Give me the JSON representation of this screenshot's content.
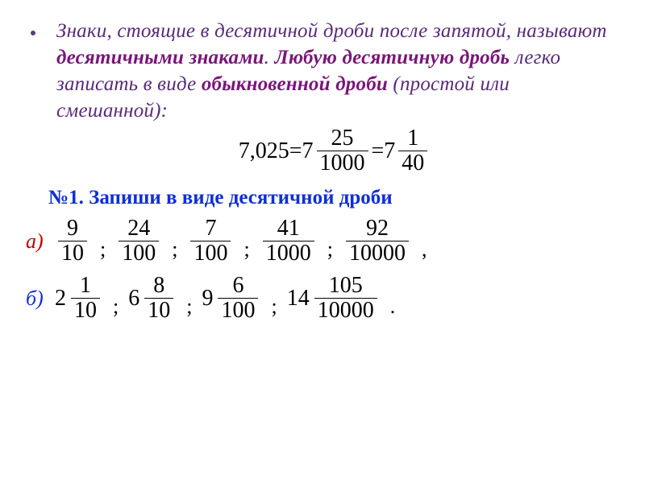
{
  "colors": {
    "text_main": "#592a7a",
    "bold_accent": "#7a157a",
    "task_blue": "#0f2fd6",
    "label_a": "#c00000",
    "label_b": "#0f2fd6",
    "black": "#000000",
    "bullet": "#5a3d7a",
    "frac_bar": "#000000"
  },
  "fonts": {
    "para_size": 25,
    "frac_size": 28,
    "title_size": 25,
    "label_size": 26
  },
  "paragraph": {
    "t1": "Знаки, стоящие в десятичной дроби после запятой, называют ",
    "b1": "десятичными знаками",
    "t2": ". ",
    "b2": "Любую десятичную дробь",
    "t3": " легко записать в виде ",
    "b3": "обыкновенной дроби ",
    "t4": "(простой или смешанной):"
  },
  "example": {
    "lhs": "7,025",
    "eq": " = ",
    "whole": "7",
    "f1": {
      "n": "25",
      "d": "1000"
    },
    "f2": {
      "n": "1",
      "d": "40"
    }
  },
  "task_title": "№1. Запиши в виде десятичной дроби",
  "row_a": {
    "label": "а)",
    "items": [
      {
        "n": "9",
        "d": "10"
      },
      {
        "n": "24",
        "d": "100"
      },
      {
        "n": "7",
        "d": "100"
      },
      {
        "n": "41",
        "d": "1000"
      },
      {
        "n": "92",
        "d": "10000"
      }
    ],
    "seps": [
      ";",
      ";",
      ";",
      ";",
      ","
    ]
  },
  "row_b": {
    "label": "б)",
    "items": [
      {
        "w": "2",
        "n": "1",
        "d": "10"
      },
      {
        "w": "6",
        "n": "8",
        "d": "10"
      },
      {
        "w": "9",
        "n": "6",
        "d": "100"
      },
      {
        "w": "14",
        "n": "105",
        "d": "10000"
      }
    ],
    "seps": [
      ";",
      ";",
      ";",
      "."
    ]
  }
}
